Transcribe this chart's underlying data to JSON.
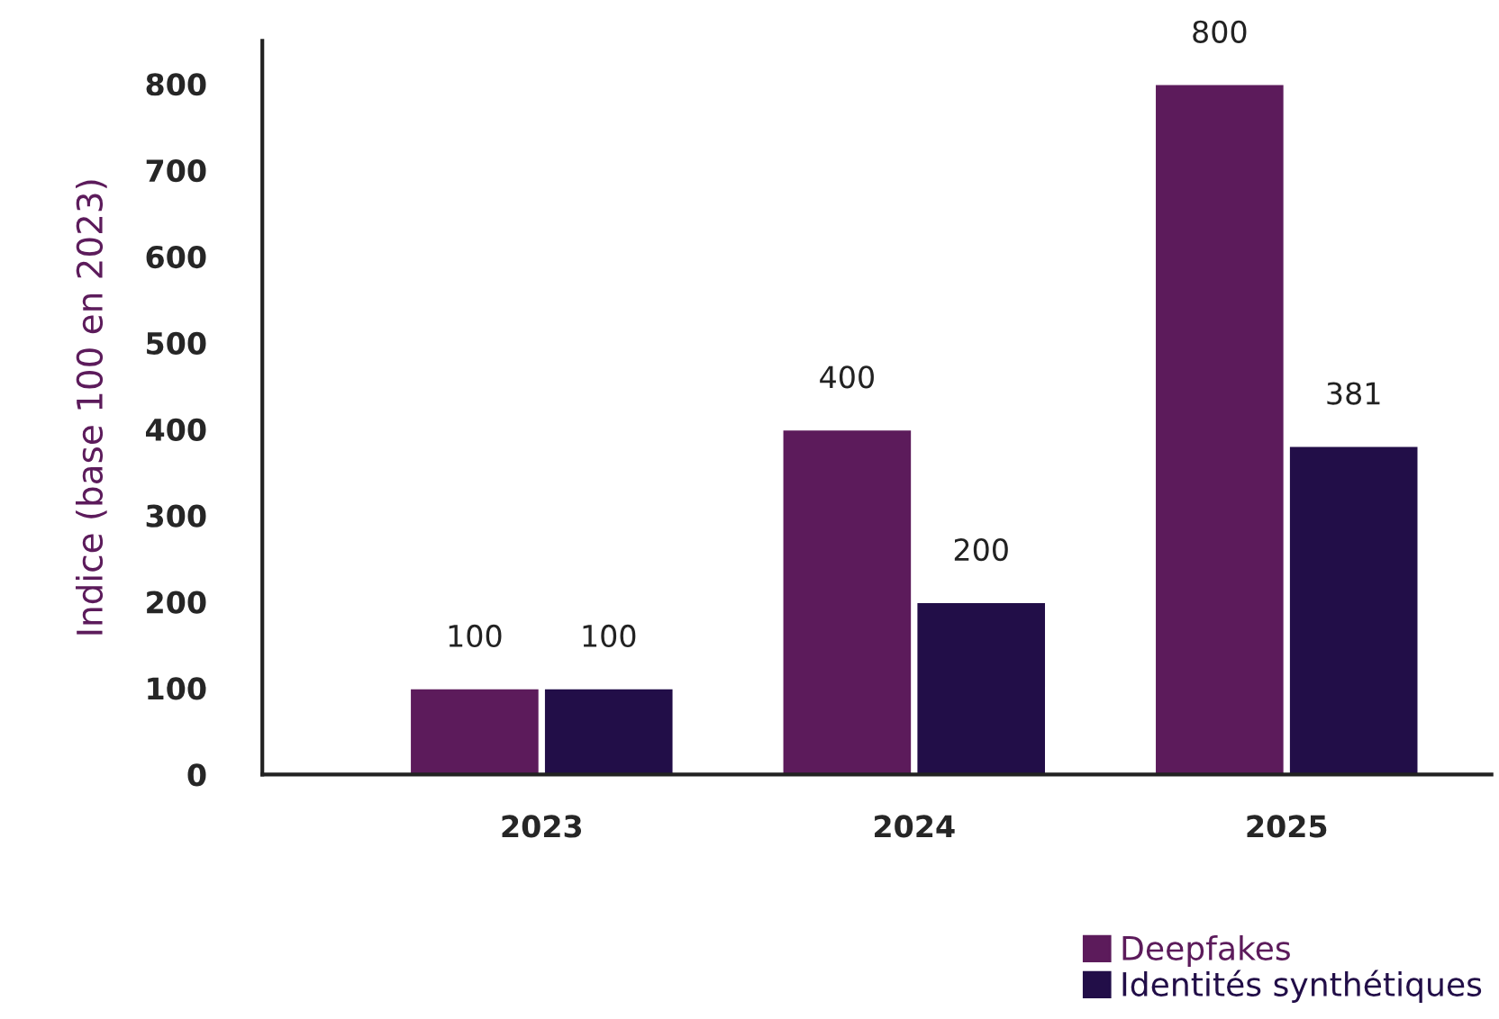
{
  "chart_data": {
    "type": "bar",
    "ylabel": "Indice (base 100 en 2023)",
    "categories": [
      "2023",
      "2024",
      "2025"
    ],
    "series": [
      {
        "name": "Deepfakes",
        "color": "#5c1b5b",
        "values": [
          100,
          400,
          800
        ]
      },
      {
        "name": "Identités synthétiques",
        "color": "#220e48",
        "values": [
          100,
          200,
          381
        ]
      }
    ],
    "ylim": [
      0,
      850
    ],
    "yticks": [
      0,
      100,
      200,
      300,
      400,
      500,
      600,
      700,
      800
    ],
    "data_labels": true,
    "grid": false,
    "legend": "bottom right"
  }
}
